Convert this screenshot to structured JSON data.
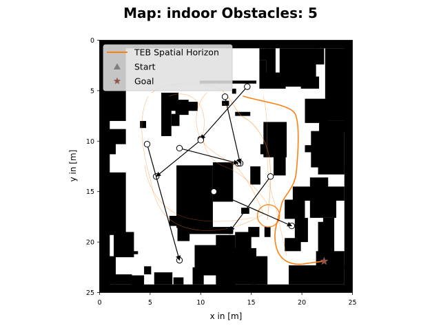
{
  "chart_data": {
    "type": "map",
    "title": "Map: indoor Obstacles: 5",
    "xlabel": "x in [m]",
    "ylabel": "y in [m]",
    "xlim": [
      0,
      25
    ],
    "ylim": [
      25,
      0
    ],
    "xticks": [
      0,
      5,
      10,
      15,
      20,
      25
    ],
    "yticks": [
      0,
      5,
      10,
      15,
      20,
      25
    ],
    "legend": {
      "position": "top-left",
      "entries": [
        {
          "label": "TEB Spatial Horizon",
          "marker": "line",
          "color": "#ff7f0e"
        },
        {
          "label": "Start",
          "marker": "triangle",
          "color": "#7f7f7f"
        },
        {
          "label": "Goal",
          "marker": "star",
          "color": "#8c564b"
        }
      ]
    },
    "start": {
      "x": 16.7,
      "y": 17.4,
      "radius": 1.1
    },
    "goal": {
      "x": 22.2,
      "y": 21.9
    },
    "obstacle_arrows": [
      {
        "from": [
          14.6,
          4.6
        ],
        "to": [
          10.0,
          9.8
        ]
      },
      {
        "from": [
          12.4,
          5.6
        ],
        "to": [
          13.9,
          12.2
        ]
      },
      {
        "from": [
          10.0,
          9.9
        ],
        "to": [
          5.6,
          13.5
        ]
      },
      {
        "from": [
          7.9,
          10.7
        ],
        "to": [
          13.7,
          12.2
        ]
      },
      {
        "from": [
          4.7,
          10.3
        ],
        "to": [
          7.9,
          21.8
        ]
      },
      {
        "from": [
          11.3,
          15.0
        ],
        "to": [
          19.0,
          18.4
        ]
      },
      {
        "from": [
          16.9,
          13.5
        ],
        "to": [
          12.9,
          18.9
        ]
      }
    ],
    "map_walls": [
      [
        0,
        0,
        25,
        0.8
      ],
      [
        0,
        0,
        1.0,
        25
      ],
      [
        24.2,
        0,
        0.8,
        25
      ],
      [
        0,
        24.2,
        25,
        0.8
      ],
      [
        0,
        0,
        2.6,
        8
      ],
      [
        0,
        8,
        1.0,
        17
      ],
      [
        0,
        8.8,
        2.6,
        1.5
      ],
      [
        0,
        10,
        1.6,
        1.3
      ],
      [
        0,
        13.1,
        2.6,
        6.2
      ],
      [
        1.4,
        19.0,
        2.0,
        2.5
      ],
      [
        0,
        21.4,
        1.6,
        2.8
      ],
      [
        1.4,
        23.2,
        1.8,
        1.0
      ],
      [
        3.1,
        23.3,
        1.3,
        1.0
      ],
      [
        5.4,
        23.0,
        1.8,
        1.2
      ],
      [
        7.3,
        23.5,
        1.0,
        0.7
      ],
      [
        9.2,
        22.5,
        1.1,
        1.7
      ],
      [
        4.4,
        22.4,
        0.7,
        0.8
      ],
      [
        2.9,
        20.9,
        0.9,
        0.3
      ],
      [
        9.9,
        4.0,
        5.6,
        0.3
      ],
      [
        13.1,
        4.8,
        0.4,
        0.5
      ],
      [
        15.8,
        0.8,
        0.8,
        1.2
      ],
      [
        16.5,
        0.8,
        0.9,
        3.8
      ],
      [
        15.8,
        2.0,
        0.7,
        2.8
      ],
      [
        16.4,
        3.2,
        2.0,
        1.6
      ],
      [
        17.8,
        0.8,
        3.6,
        3.8
      ],
      [
        19.9,
        3.6,
        1.8,
        1.2
      ],
      [
        21.3,
        0.8,
        0.9,
        1.6
      ],
      [
        22.3,
        0.8,
        2.0,
        5.0
      ],
      [
        22.4,
        5.0,
        1.9,
        3.0
      ],
      [
        20.3,
        5.8,
        2.2,
        2.4
      ],
      [
        21.7,
        8.0,
        2.6,
        1.1
      ],
      [
        20.9,
        9.0,
        3.3,
        3.6
      ],
      [
        20.3,
        10.4,
        1.0,
        0.7
      ],
      [
        21.6,
        12.5,
        2.6,
        0.8
      ],
      [
        20.8,
        13.6,
        1.8,
        1.0
      ],
      [
        19.1,
        14.5,
        5.1,
        1.4
      ],
      [
        18.3,
        15.8,
        2.0,
        1.9
      ],
      [
        20.8,
        15.8,
        2.6,
        1.8
      ],
      [
        22.1,
        17.6,
        1.1,
        4.1
      ],
      [
        21.4,
        20.9,
        2.8,
        1.8
      ],
      [
        18.7,
        22.3,
        5.5,
        1.9
      ],
      [
        18.3,
        19.6,
        1.6,
        1.3
      ],
      [
        19.3,
        17.6,
        1.3,
        2.4
      ],
      [
        16.3,
        18.5,
        0.6,
        1.0
      ],
      [
        21.6,
        18.0,
        1.0,
        3.0
      ],
      [
        6.1,
        5.2,
        1.7,
        1.8
      ],
      [
        7.5,
        5.9,
        1.3,
        1.5
      ],
      [
        8.6,
        6.1,
        1.1,
        0.9
      ],
      [
        6.1,
        6.9,
        1.0,
        2.6
      ],
      [
        7.1,
        7.3,
        0.8,
        1.2
      ],
      [
        4.0,
        8.0,
        0.6,
        0.7
      ],
      [
        7.6,
        12.4,
        3.6,
        6.2
      ],
      [
        11.2,
        12.1,
        2.0,
        3.9
      ],
      [
        8.8,
        18.5,
        4.4,
        0.7
      ],
      [
        11.5,
        19.3,
        1.9,
        5.0
      ],
      [
        9.4,
        20.3,
        3.2,
        3.0
      ],
      [
        13.4,
        19.0,
        1.6,
        2.6
      ],
      [
        14.7,
        18.5,
        1.1,
        1.0
      ],
      [
        13.2,
        20.6,
        2.3,
        3.6
      ],
      [
        15.0,
        21.4,
        1.6,
        2.8
      ],
      [
        14.0,
        16.6,
        0.8,
        0.6
      ],
      [
        16.2,
        8.1,
        2.3,
        3.5
      ],
      [
        17.2,
        10.3,
        1.2,
        3.1
      ],
      [
        14.9,
        12.5,
        1.0,
        1.8
      ],
      [
        15.9,
        10.3,
        1.3,
        1.0
      ],
      [
        13.4,
        7.1,
        1.5,
        0.4
      ],
      [
        12.1,
        6.0,
        0.7,
        0.5
      ],
      [
        6.9,
        17.4,
        1.8,
        1.0
      ],
      [
        7.7,
        18.4,
        1.2,
        1.5
      ]
    ]
  }
}
